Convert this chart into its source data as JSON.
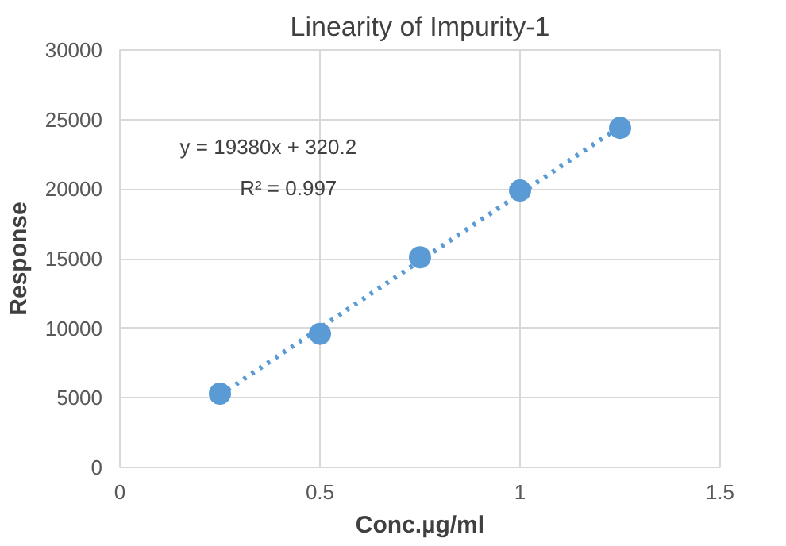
{
  "chart_data": {
    "type": "scatter",
    "title": "Linearity of Impurity-1",
    "xlabel": "Conc.µg/ml",
    "ylabel": "Response",
    "x": [
      0.25,
      0.5,
      0.75,
      1.0,
      1.25
    ],
    "series": [
      {
        "color": "#5b9bd5",
        "values": [
          5300,
          9600,
          15100,
          19900,
          24400
        ],
        "marker": "circle"
      },
      {
        "type": "line",
        "color": "#5b9bd5",
        "x": [
          0.25,
          1.25
        ],
        "values": [
          5200,
          24500
        ],
        "line_style": "dotted"
      }
    ],
    "annotations": [
      "y = 19380x + 320.2",
      "R² = 0.997"
    ],
    "xlim": [
      0,
      1.5
    ],
    "xticks": [
      0,
      0.5,
      1,
      1.5
    ],
    "ylim": [
      0,
      30000
    ],
    "yticks": [
      0,
      5000,
      10000,
      15000,
      20000,
      25000,
      30000
    ],
    "grid": true
  }
}
